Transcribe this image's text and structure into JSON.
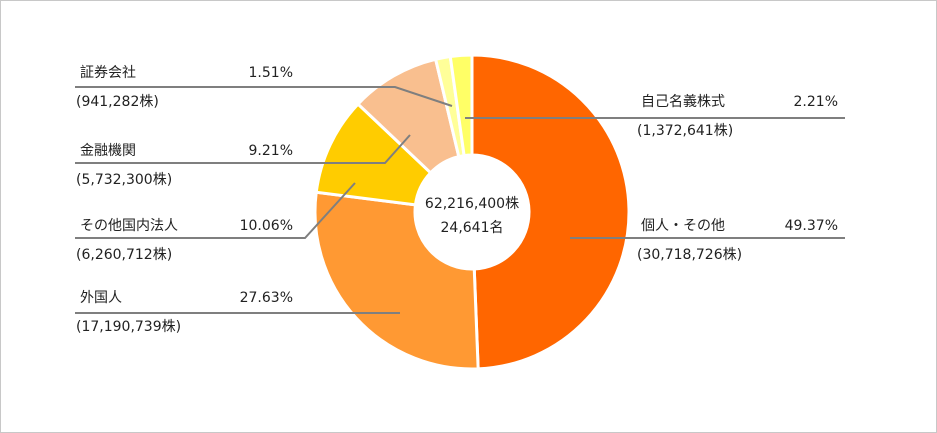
{
  "chart_data": {
    "type": "donut",
    "categories": [
      "個人・その他",
      "外国人",
      "その他国内法人",
      "金融機関",
      "証券会社",
      "自己名義株式"
    ],
    "values": [
      49.37,
      27.63,
      10.06,
      9.21,
      1.51,
      2.21
    ],
    "value_labels": [
      "49.37%",
      "27.63%",
      "10.06%",
      "9.21%",
      "1.51%",
      "2.21%"
    ],
    "share_labels": [
      "(30,718,726株)",
      "(17,190,739株)",
      "(6,260,712株)",
      "(5,732,300株)",
      "(941,282株)",
      "(1,372,641株)"
    ],
    "colors": [
      "#ff6600",
      "#ff9933",
      "#ffcc00",
      "#f9bf8f",
      "#ffff99",
      "#ffff66"
    ],
    "center_labels": [
      "62,216,400株",
      "24,641名"
    ]
  }
}
